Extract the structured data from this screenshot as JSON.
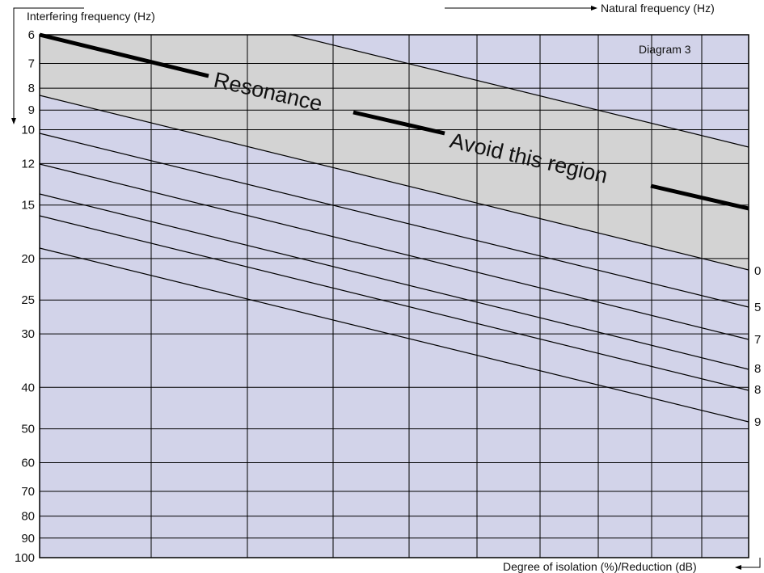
{
  "chart_data": {
    "type": "line",
    "title": "Diagram 3",
    "ylabel": "Interfering frequency (Hz)",
    "xlabel": "Natural frequency (Hz)",
    "series_axis_label": "Degree of isolation (%)/Reduction (dB)",
    "y_scale": "log",
    "y_ticks": [
      "6",
      "7",
      "8",
      "9",
      "10",
      "12",
      "15",
      "20",
      "25",
      "30",
      "40",
      "50",
      "60",
      "70",
      "80",
      "90",
      "100"
    ],
    "y_range": [
      6,
      100
    ],
    "region_labels": [
      "Resonance",
      "Avoid this region"
    ],
    "series_end_labels": [
      "0",
      "5",
      "7",
      "8",
      "8",
      "9"
    ],
    "colors": {
      "background": "#d2d3e9",
      "region": "#d3d3d3",
      "grid": "#000000"
    }
  }
}
